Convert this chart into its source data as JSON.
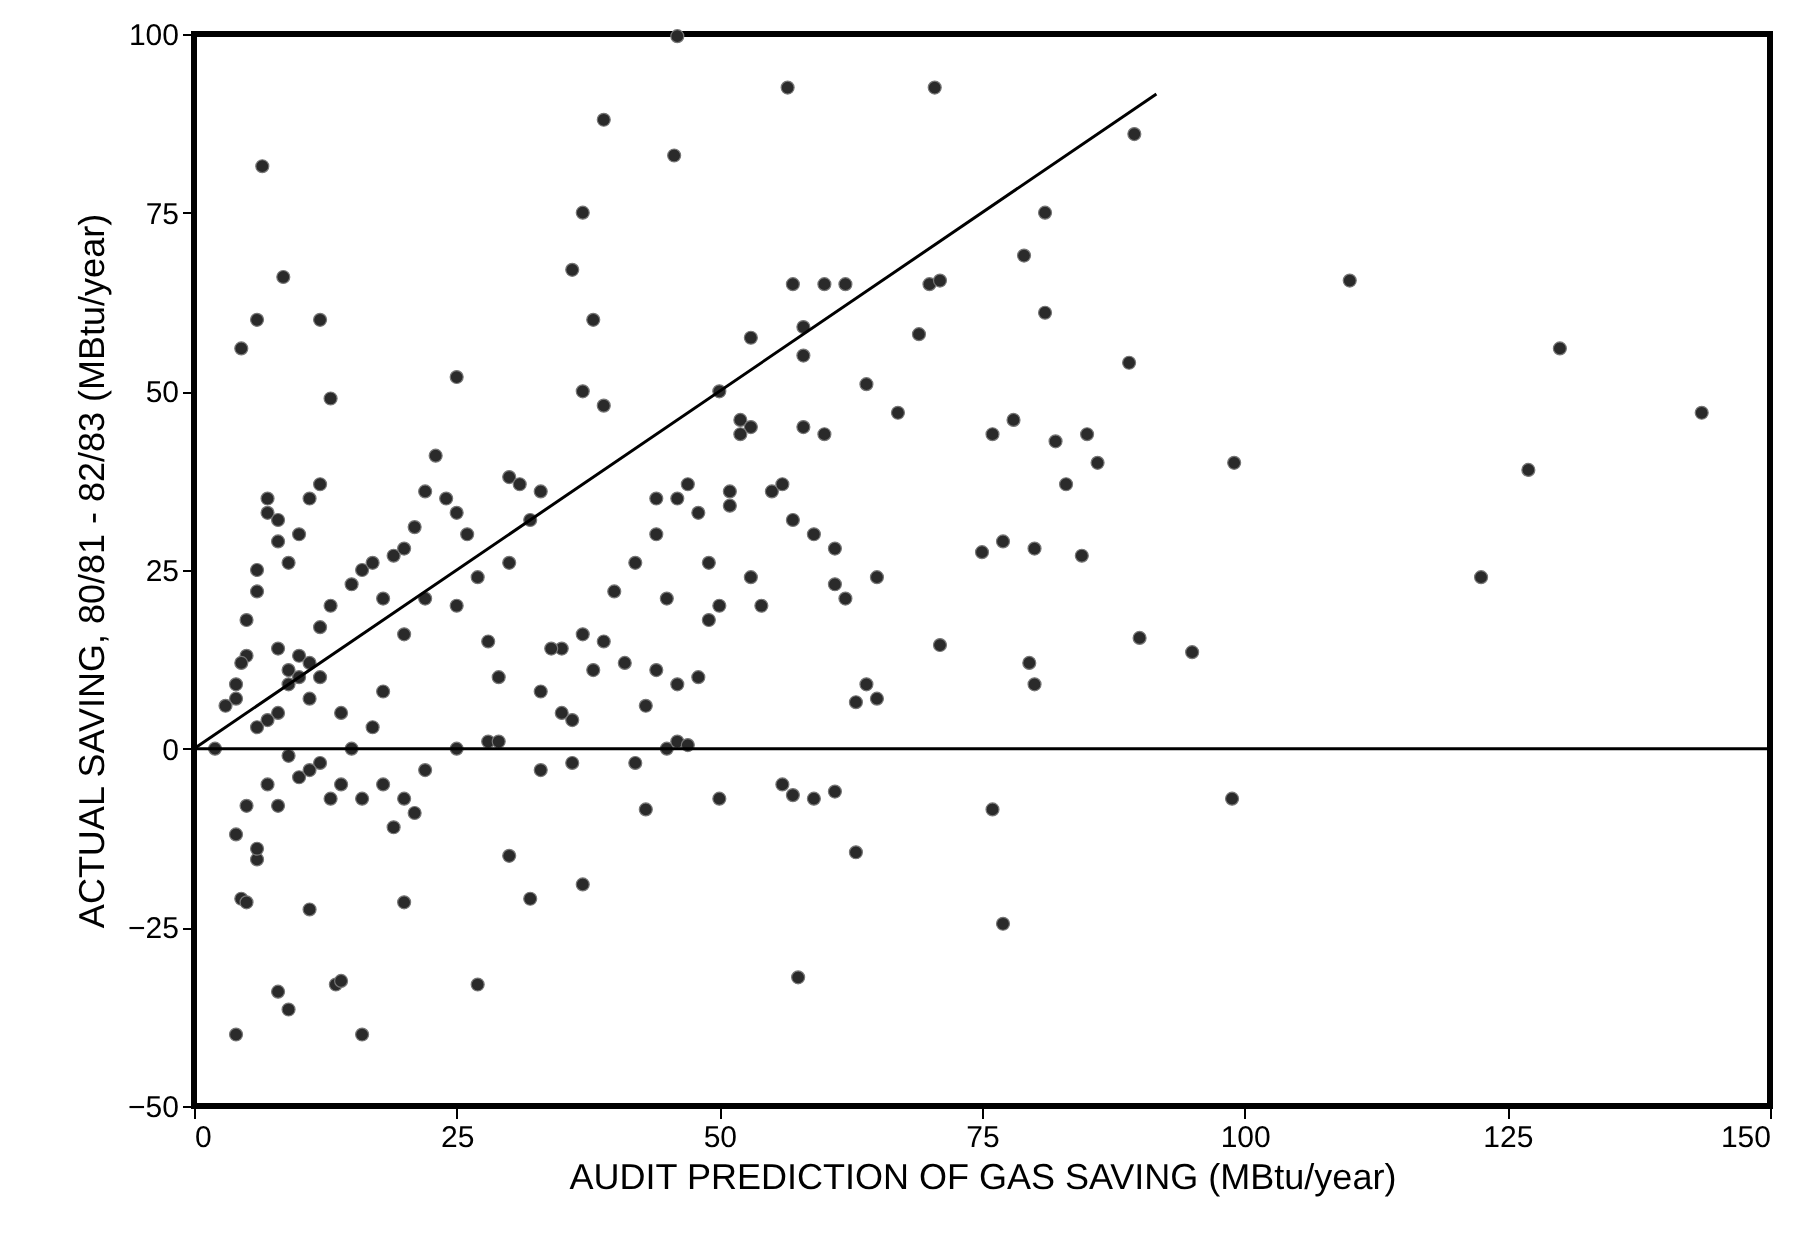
{
  "chart_data": {
    "type": "scatter",
    "xlabel": "AUDIT PREDICTION OF GAS SAVING (MBtu/year)",
    "ylabel": "ACTUAL SAVING, 80/81 - 82/83 (MBtu/year)",
    "xlim": [
      0,
      150
    ],
    "xticks": [
      0,
      25,
      50,
      75,
      100,
      125,
      150
    ],
    "ylim": [
      -50,
      100
    ],
    "yticks": [
      -50,
      -25,
      0,
      25,
      50,
      75,
      100
    ],
    "grid": false,
    "marker": "circle",
    "series": [
      {
        "color": "#2a2a2a",
        "x": [
          46,
          6.5,
          4.5,
          6,
          8.5,
          12,
          13,
          25,
          39,
          36,
          37,
          38,
          37,
          39,
          45.7,
          56.5,
          70.5,
          89.5,
          60,
          57,
          53,
          58,
          58,
          62,
          64,
          69,
          70,
          71,
          79,
          81,
          81,
          89,
          110,
          130,
          143.5,
          127,
          122.5,
          99,
          95,
          90,
          98.8,
          77,
          76,
          57.5,
          63,
          43,
          50,
          32,
          30,
          27,
          16,
          13.5,
          14,
          8,
          9,
          4,
          4.5,
          5,
          6,
          11,
          20,
          37,
          56,
          57,
          59,
          61,
          45,
          46,
          47,
          75,
          76,
          77,
          78,
          79.5,
          80,
          80,
          82,
          83,
          84.5,
          85,
          86,
          71,
          67,
          65,
          62,
          61,
          63,
          64,
          65,
          58,
          60,
          59,
          61,
          55,
          56,
          57,
          53,
          54,
          49,
          50,
          51,
          52,
          53,
          51,
          52,
          48,
          46,
          47,
          44,
          44,
          42,
          41,
          43,
          44,
          45,
          46,
          48,
          49,
          50,
          36,
          35,
          37,
          39,
          38,
          40,
          42,
          5,
          4,
          4.5,
          5,
          6,
          6,
          7,
          7,
          8,
          8,
          9,
          10,
          11,
          12,
          9,
          10,
          10,
          11,
          12,
          9,
          8,
          8,
          7,
          6,
          11,
          12,
          13,
          14,
          15,
          16,
          17,
          18,
          19,
          20,
          21,
          22,
          23,
          24,
          25,
          26,
          27,
          28,
          29,
          30,
          31,
          32,
          33,
          30,
          33,
          34,
          25,
          22,
          20,
          18,
          17,
          15,
          16,
          14,
          12,
          10,
          8,
          7,
          5,
          4,
          6,
          9,
          11,
          13,
          18,
          19,
          20,
          21,
          22,
          25,
          28,
          29,
          33,
          35,
          36,
          2,
          3,
          4
        ],
        "values": [
          99.7,
          81.5,
          56,
          60,
          66,
          60,
          49,
          52,
          88,
          67,
          75,
          60,
          50,
          48,
          83,
          92.5,
          92.5,
          86,
          65,
          65,
          57.5,
          59,
          55,
          65,
          51,
          58,
          65,
          65.5,
          69,
          75,
          61,
          54,
          65.5,
          56,
          47,
          39,
          24,
          40,
          13.5,
          15.5,
          -7,
          -24.5,
          -8.5,
          -32,
          -14.5,
          -8.5,
          -7,
          -21,
          -15,
          -33,
          -40,
          -33,
          -32.5,
          -34,
          -36.5,
          -40,
          -21,
          -21.5,
          -15.5,
          -22.5,
          -21.5,
          -19,
          -5,
          -6.5,
          -7,
          -6,
          0,
          1,
          0.5,
          27.5,
          44,
          29,
          46,
          12,
          9,
          28,
          43,
          37,
          27,
          44,
          40,
          14.5,
          47,
          24,
          21,
          23,
          6.5,
          9,
          7,
          45,
          44,
          30,
          28,
          36,
          37,
          32,
          24,
          20,
          26,
          50,
          36,
          46,
          45,
          34,
          44,
          33,
          35,
          37,
          35,
          30,
          26,
          12,
          6,
          11,
          21,
          9,
          10,
          18,
          20,
          4,
          14,
          16,
          15,
          11,
          22,
          -2,
          13,
          7,
          12,
          18,
          22,
          25,
          35,
          33,
          32,
          29,
          26,
          30,
          35,
          37,
          11,
          10,
          13,
          12,
          10,
          9,
          14,
          5,
          4,
          3,
          7,
          17,
          20,
          5,
          23,
          25,
          26,
          21,
          27,
          28,
          31,
          36,
          41,
          35,
          33,
          30,
          24,
          15,
          10,
          38,
          37,
          32,
          36,
          26,
          8,
          14,
          20,
          21,
          16,
          8,
          3,
          0,
          -7,
          -5,
          -2,
          -4,
          -8,
          -5,
          -8,
          -12,
          -14,
          -1,
          -3,
          -7,
          -5,
          -11,
          -7,
          -9,
          -3,
          0,
          1,
          1,
          -3,
          5,
          -2,
          0,
          6,
          9
        ]
      },
      {
        "type": "line",
        "color": "#000000",
        "line_style": "solid",
        "marker": "none",
        "x": [
          0,
          91.6
        ],
        "values": [
          0,
          91.6
        ]
      }
    ],
    "ref_lines": [
      {
        "axis": "y",
        "value": 0,
        "color": "#000000"
      }
    ]
  }
}
